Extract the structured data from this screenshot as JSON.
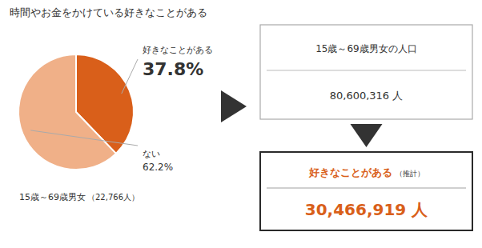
{
  "chart_data": {
    "type": "pie",
    "title": "時間やお金をかけている好きなことがある",
    "categories": [
      "好きなことがある",
      "ない"
    ],
    "values": [
      37.8,
      62.2
    ],
    "value_labels": [
      "37.8%",
      "62.2%"
    ],
    "colors": [
      "#d95f1a",
      "#f0b088"
    ],
    "data_labels": true,
    "annotations": [
      "15歳～69歳男女",
      "（22,766人）",
      "15歳～69歳男女の人口",
      "80,600,316 人",
      "好きなことがある",
      "（推計）",
      "30,466,919 人"
    ]
  }
}
